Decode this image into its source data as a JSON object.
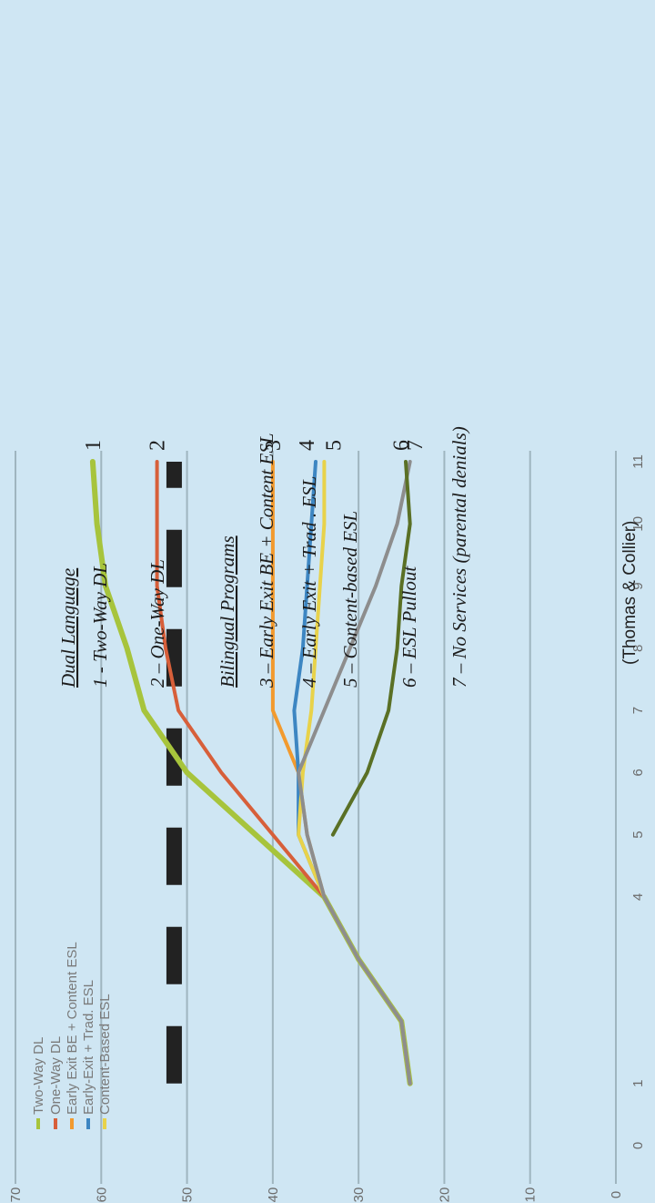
{
  "chart_data": {
    "type": "line",
    "x": [
      1,
      2,
      3,
      4,
      5,
      6,
      7,
      8,
      9,
      10,
      11
    ],
    "x_ticks": [
      "0",
      "1",
      "4",
      "5",
      "6",
      "7",
      "8",
      "9",
      "10",
      "11"
    ],
    "y_ticks": [
      "0",
      "10",
      "20",
      "30",
      "40",
      "50",
      "60",
      "70"
    ],
    "ylim": [
      0,
      70
    ],
    "grid": true,
    "reference_line": {
      "y": 51.5,
      "style": "dashed",
      "color": "#222222"
    },
    "series": [
      {
        "name": "Two-Way DL",
        "color": "#a7c43c",
        "end_label": "1",
        "x": [
          1,
          2,
          3,
          4,
          5,
          6,
          7,
          8,
          9,
          10,
          11
        ],
        "y": [
          24,
          25,
          30,
          34,
          42,
          50,
          55,
          57,
          59.5,
          60.5,
          61
        ]
      },
      {
        "name": "One-Way DL",
        "color": "#d75f3a",
        "end_label": "2",
        "x": [
          1,
          2,
          3,
          4,
          5,
          6,
          7,
          8,
          9,
          10,
          11
        ],
        "y": [
          24,
          25,
          30,
          34,
          40,
          46,
          51,
          52.5,
          53.5,
          53.5,
          53.5
        ]
      },
      {
        "name": "Early Exit BE + Content ESL",
        "color": "#f29a2e",
        "end_label": "3",
        "x": [
          1,
          2,
          3,
          4,
          5,
          6,
          7,
          8,
          9,
          10,
          11
        ],
        "y": [
          24,
          25,
          30,
          34,
          36,
          37,
          40,
          40,
          40,
          40,
          40
        ]
      },
      {
        "name": "Early-Exit + Trad. ESL",
        "color": "#3d86c2",
        "end_label": "4",
        "x": [
          1,
          2,
          3,
          4,
          5,
          6,
          7,
          8,
          9,
          10,
          11
        ],
        "y": [
          24,
          25,
          30,
          34,
          37,
          37,
          37.5,
          36.5,
          36,
          35.5,
          35
        ]
      },
      {
        "name": "Content-Based ESL",
        "color": "#e8d24a",
        "end_label": "5",
        "x": [
          1,
          2,
          3,
          4,
          5,
          6,
          7,
          8,
          9,
          10,
          11
        ],
        "y": [
          24,
          25,
          30,
          34,
          37,
          36.5,
          35.5,
          35,
          34.5,
          34,
          34
        ]
      },
      {
        "name": "ESL Pullout",
        "color": "#8d8d8d",
        "end_label": "6",
        "x": [
          1,
          2,
          3,
          4,
          5,
          6,
          7,
          8,
          9,
          10,
          11
        ],
        "y": [
          24,
          25,
          30,
          34,
          36,
          37,
          34,
          31,
          28,
          25.5,
          24
        ]
      },
      {
        "name": "No Services (parental denials)",
        "color": "#5a7025",
        "end_label": "7",
        "x": [
          5,
          6,
          7,
          8,
          9,
          10,
          11
        ],
        "y": [
          33,
          29,
          26.5,
          25.5,
          25,
          24,
          24.5
        ]
      }
    ],
    "legend": {
      "placement": "bottom-left",
      "entries": [
        "Two-Way DL",
        "One-Way DL",
        "Early Exit BE + Content ESL",
        "Early-Exit + Trad. ESL",
        "Content-Based ESL"
      ]
    }
  },
  "annotations": {
    "dual_heading": "Dual Language",
    "dual_items": [
      "1 - Two-Way DL",
      "2 – One-Way DL"
    ],
    "bilingual_heading": "Bilingual Programs",
    "bilingual_items": [
      "3 – Early Exit BE + Content ESL",
      "4 – Early Exit + Trad . ESL",
      "5 – Content-based ESL",
      "6 – ESL Pullout",
      "7 – No Services (parental denials)"
    ],
    "source": "(Thomas & Collier)"
  }
}
